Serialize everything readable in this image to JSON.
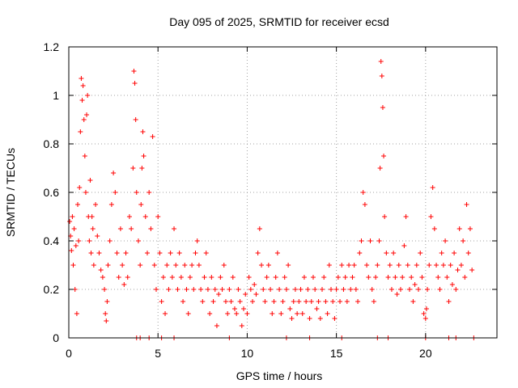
{
  "chart_data": {
    "type": "scatter",
    "title": "Day 095 of 2025, SRMTID for receiver ecsd",
    "xlabel": "GPS time / hours",
    "ylabel": "SRMTID / TECUs",
    "xlim": [
      0,
      24
    ],
    "ylim": [
      0,
      1.2
    ],
    "xticks": [
      0,
      5,
      10,
      15,
      20
    ],
    "yticks": [
      0,
      0.2,
      0.4,
      0.6,
      0.8,
      1,
      1.2
    ],
    "xtick_labels": [
      "0",
      "5",
      "10",
      "15",
      "20"
    ],
    "ytick_labels": [
      "0",
      "0.2",
      "0.4",
      "0.6",
      "0.8",
      "1",
      "1.2"
    ],
    "grid": true,
    "marker": "+",
    "color": "#ff0000",
    "series": [
      {
        "name": "SRMTID",
        "points": [
          [
            0.05,
            0.48
          ],
          [
            0.1,
            0.42
          ],
          [
            0.15,
            0.36
          ],
          [
            0.2,
            0.5
          ],
          [
            0.25,
            0.3
          ],
          [
            0.3,
            0.45
          ],
          [
            0.35,
            0.2
          ],
          [
            0.4,
            0.38
          ],
          [
            0.45,
            0.1
          ],
          [
            0.5,
            0.55
          ],
          [
            0.55,
            0.4
          ],
          [
            0.6,
            0.62
          ],
          [
            0.65,
            0.85
          ],
          [
            0.7,
            1.07
          ],
          [
            0.75,
            0.98
          ],
          [
            0.8,
            1.04
          ],
          [
            0.85,
            0.9
          ],
          [
            0.9,
            0.75
          ],
          [
            0.95,
            0.6
          ],
          [
            1.0,
            0.92
          ],
          [
            1.05,
            1.0
          ],
          [
            1.1,
            0.5
          ],
          [
            1.15,
            0.4
          ],
          [
            1.2,
            0.65
          ],
          [
            1.25,
            0.35
          ],
          [
            1.3,
            0.5
          ],
          [
            1.35,
            0.45
          ],
          [
            1.4,
            0.3
          ],
          [
            1.5,
            0.55
          ],
          [
            1.6,
            0.42
          ],
          [
            1.7,
            0.35
          ],
          [
            1.8,
            0.28
          ],
          [
            1.9,
            0.25
          ],
          [
            2.0,
            0.2
          ],
          [
            2.05,
            0.1
          ],
          [
            2.1,
            0.07
          ],
          [
            2.15,
            0.15
          ],
          [
            2.2,
            0.3
          ],
          [
            2.3,
            0.4
          ],
          [
            2.4,
            0.55
          ],
          [
            2.5,
            0.68
          ],
          [
            2.6,
            0.6
          ],
          [
            2.7,
            0.35
          ],
          [
            2.8,
            0.25
          ],
          [
            2.9,
            0.45
          ],
          [
            3.0,
            0.3
          ],
          [
            3.1,
            0.22
          ],
          [
            3.2,
            0.35
          ],
          [
            3.3,
            0.25
          ],
          [
            3.4,
            0.5
          ],
          [
            3.5,
            0.45
          ],
          [
            3.6,
            0.7
          ],
          [
            3.65,
            1.1
          ],
          [
            3.7,
            1.05
          ],
          [
            3.75,
            0.9
          ],
          [
            3.8,
            0.6
          ],
          [
            3.9,
            0.4
          ],
          [
            4.0,
            0.3
          ],
          [
            4.05,
            0.55
          ],
          [
            4.1,
            0.7
          ],
          [
            4.15,
            0.85
          ],
          [
            4.2,
            0.75
          ],
          [
            4.3,
            0.5
          ],
          [
            4.4,
            0.35
          ],
          [
            4.5,
            0.6
          ],
          [
            4.6,
            0.45
          ],
          [
            4.7,
            0.83
          ],
          [
            4.8,
            0.3
          ],
          [
            4.9,
            0.2
          ],
          [
            5.0,
            0.5
          ],
          [
            5.1,
            0.35
          ],
          [
            5.2,
            0.15
          ],
          [
            5.3,
            0.25
          ],
          [
            5.4,
            0.1
          ],
          [
            5.5,
            0.3
          ],
          [
            5.6,
            0.2
          ],
          [
            5.7,
            0.35
          ],
          [
            5.8,
            0.25
          ],
          [
            5.9,
            0.45
          ],
          [
            6.0,
            0.3
          ],
          [
            6.1,
            0.2
          ],
          [
            6.2,
            0.35
          ],
          [
            6.3,
            0.25
          ],
          [
            6.4,
            0.15
          ],
          [
            6.5,
            0.3
          ],
          [
            6.6,
            0.2
          ],
          [
            6.7,
            0.1
          ],
          [
            6.8,
            0.25
          ],
          [
            6.9,
            0.3
          ],
          [
            7.0,
            0.2
          ],
          [
            7.1,
            0.35
          ],
          [
            7.2,
            0.4
          ],
          [
            7.3,
            0.3
          ],
          [
            7.4,
            0.2
          ],
          [
            7.5,
            0.15
          ],
          [
            7.6,
            0.25
          ],
          [
            7.7,
            0.35
          ],
          [
            7.8,
            0.2
          ],
          [
            7.9,
            0.1
          ],
          [
            8.0,
            0.25
          ],
          [
            8.1,
            0.15
          ],
          [
            8.2,
            0.2
          ],
          [
            8.3,
            0.05
          ],
          [
            8.4,
            0.18
          ],
          [
            8.5,
            0.25
          ],
          [
            8.6,
            0.2
          ],
          [
            8.7,
            0.3
          ],
          [
            8.8,
            0.15
          ],
          [
            8.9,
            0.1
          ],
          [
            9.0,
            0.2
          ],
          [
            9.1,
            0.15
          ],
          [
            9.2,
            0.25
          ],
          [
            9.3,
            0.12
          ],
          [
            9.4,
            0.1
          ],
          [
            9.5,
            0.2
          ],
          [
            9.6,
            0.15
          ],
          [
            9.7,
            0.05
          ],
          [
            9.8,
            0.12
          ],
          [
            9.9,
            0.18
          ],
          [
            10.0,
            0.1
          ],
          [
            10.1,
            0.25
          ],
          [
            10.2,
            0.2
          ],
          [
            10.3,
            0.15
          ],
          [
            10.4,
            0.22
          ],
          [
            10.5,
            0.18
          ],
          [
            10.6,
            0.35
          ],
          [
            10.7,
            0.45
          ],
          [
            10.8,
            0.3
          ],
          [
            10.9,
            0.2
          ],
          [
            11.0,
            0.15
          ],
          [
            11.1,
            0.25
          ],
          [
            11.2,
            0.3
          ],
          [
            11.3,
            0.2
          ],
          [
            11.4,
            0.1
          ],
          [
            11.5,
            0.15
          ],
          [
            11.6,
            0.25
          ],
          [
            11.7,
            0.35
          ],
          [
            11.8,
            0.2
          ],
          [
            11.9,
            0.1
          ],
          [
            12.0,
            0.15
          ],
          [
            12.1,
            0.25
          ],
          [
            12.2,
            0.2
          ],
          [
            12.3,
            0.3
          ],
          [
            12.4,
            0.12
          ],
          [
            12.5,
            0.08
          ],
          [
            12.6,
            0.15
          ],
          [
            12.7,
            0.2
          ],
          [
            12.8,
            0.1
          ],
          [
            12.9,
            0.15
          ],
          [
            13.0,
            0.2
          ],
          [
            13.1,
            0.1
          ],
          [
            13.2,
            0.25
          ],
          [
            13.3,
            0.15
          ],
          [
            13.4,
            0.2
          ],
          [
            13.5,
            0.08
          ],
          [
            13.6,
            0.15
          ],
          [
            13.7,
            0.25
          ],
          [
            13.8,
            0.2
          ],
          [
            13.9,
            0.12
          ],
          [
            14.0,
            0.15
          ],
          [
            14.1,
            0.08
          ],
          [
            14.2,
            0.2
          ],
          [
            14.3,
            0.25
          ],
          [
            14.4,
            0.15
          ],
          [
            14.5,
            0.1
          ],
          [
            14.6,
            0.3
          ],
          [
            14.7,
            0.2
          ],
          [
            14.8,
            0.15
          ],
          [
            14.9,
            0.08
          ],
          [
            15.0,
            0.2
          ],
          [
            15.1,
            0.25
          ],
          [
            15.2,
            0.15
          ],
          [
            15.3,
            0.3
          ],
          [
            15.4,
            0.2
          ],
          [
            15.5,
            0.25
          ],
          [
            15.6,
            0.15
          ],
          [
            15.7,
            0.3
          ],
          [
            15.8,
            0.2
          ],
          [
            15.9,
            0.25
          ],
          [
            16.0,
            0.3
          ],
          [
            16.1,
            0.2
          ],
          [
            16.2,
            0.15
          ],
          [
            16.3,
            0.35
          ],
          [
            16.4,
            0.4
          ],
          [
            16.5,
            0.6
          ],
          [
            16.6,
            0.55
          ],
          [
            16.7,
            0.3
          ],
          [
            16.8,
            0.25
          ],
          [
            16.9,
            0.4
          ],
          [
            17.0,
            0.2
          ],
          [
            17.1,
            0.15
          ],
          [
            17.2,
            0.25
          ],
          [
            17.3,
            0.3
          ],
          [
            17.4,
            0.4
          ],
          [
            17.45,
            0.7
          ],
          [
            17.5,
            1.14
          ],
          [
            17.55,
            1.08
          ],
          [
            17.6,
            0.95
          ],
          [
            17.65,
            0.75
          ],
          [
            17.7,
            0.5
          ],
          [
            17.8,
            0.35
          ],
          [
            17.9,
            0.25
          ],
          [
            18.0,
            0.3
          ],
          [
            18.1,
            0.2
          ],
          [
            18.2,
            0.35
          ],
          [
            18.3,
            0.25
          ],
          [
            18.4,
            0.18
          ],
          [
            18.5,
            0.3
          ],
          [
            18.6,
            0.2
          ],
          [
            18.7,
            0.25
          ],
          [
            18.8,
            0.38
          ],
          [
            18.9,
            0.5
          ],
          [
            19.0,
            0.3
          ],
          [
            19.1,
            0.2
          ],
          [
            19.2,
            0.25
          ],
          [
            19.3,
            0.15
          ],
          [
            19.4,
            0.22
          ],
          [
            19.5,
            0.3
          ],
          [
            19.6,
            0.2
          ],
          [
            19.7,
            0.35
          ],
          [
            19.8,
            0.25
          ],
          [
            19.9,
            0.1
          ],
          [
            20.0,
            0.08
          ],
          [
            20.05,
            0.12
          ],
          [
            20.1,
            0.2
          ],
          [
            20.2,
            0.3
          ],
          [
            20.3,
            0.5
          ],
          [
            20.4,
            0.62
          ],
          [
            20.5,
            0.45
          ],
          [
            20.6,
            0.3
          ],
          [
            20.7,
            0.25
          ],
          [
            20.8,
            0.2
          ],
          [
            20.9,
            0.35
          ],
          [
            21.0,
            0.3
          ],
          [
            21.1,
            0.4
          ],
          [
            21.2,
            0.25
          ],
          [
            21.3,
            0.15
          ],
          [
            21.4,
            0.3
          ],
          [
            21.5,
            0.22
          ],
          [
            21.6,
            0.35
          ],
          [
            21.7,
            0.2
          ],
          [
            21.8,
            0.28
          ],
          [
            21.9,
            0.45
          ],
          [
            22.0,
            0.3
          ],
          [
            22.1,
            0.4
          ],
          [
            22.2,
            0.25
          ],
          [
            22.3,
            0.55
          ],
          [
            22.4,
            0.35
          ],
          [
            22.5,
            0.45
          ],
          [
            22.6,
            0.28
          ],
          [
            3.8,
            0.0
          ],
          [
            4.0,
            0.0
          ],
          [
            4.5,
            0.0
          ],
          [
            5.2,
            0.0
          ],
          [
            5.9,
            0.0
          ],
          [
            9.0,
            0.0
          ],
          [
            12.2,
            0.0
          ],
          [
            13.5,
            0.0
          ],
          [
            15.3,
            0.0
          ],
          [
            17.3,
            0.0
          ],
          [
            17.9,
            0.0
          ],
          [
            20.0,
            0.0
          ],
          [
            21.3,
            0.0
          ],
          [
            21.7,
            0.0
          ],
          [
            22.7,
            0.0
          ]
        ]
      }
    ]
  }
}
